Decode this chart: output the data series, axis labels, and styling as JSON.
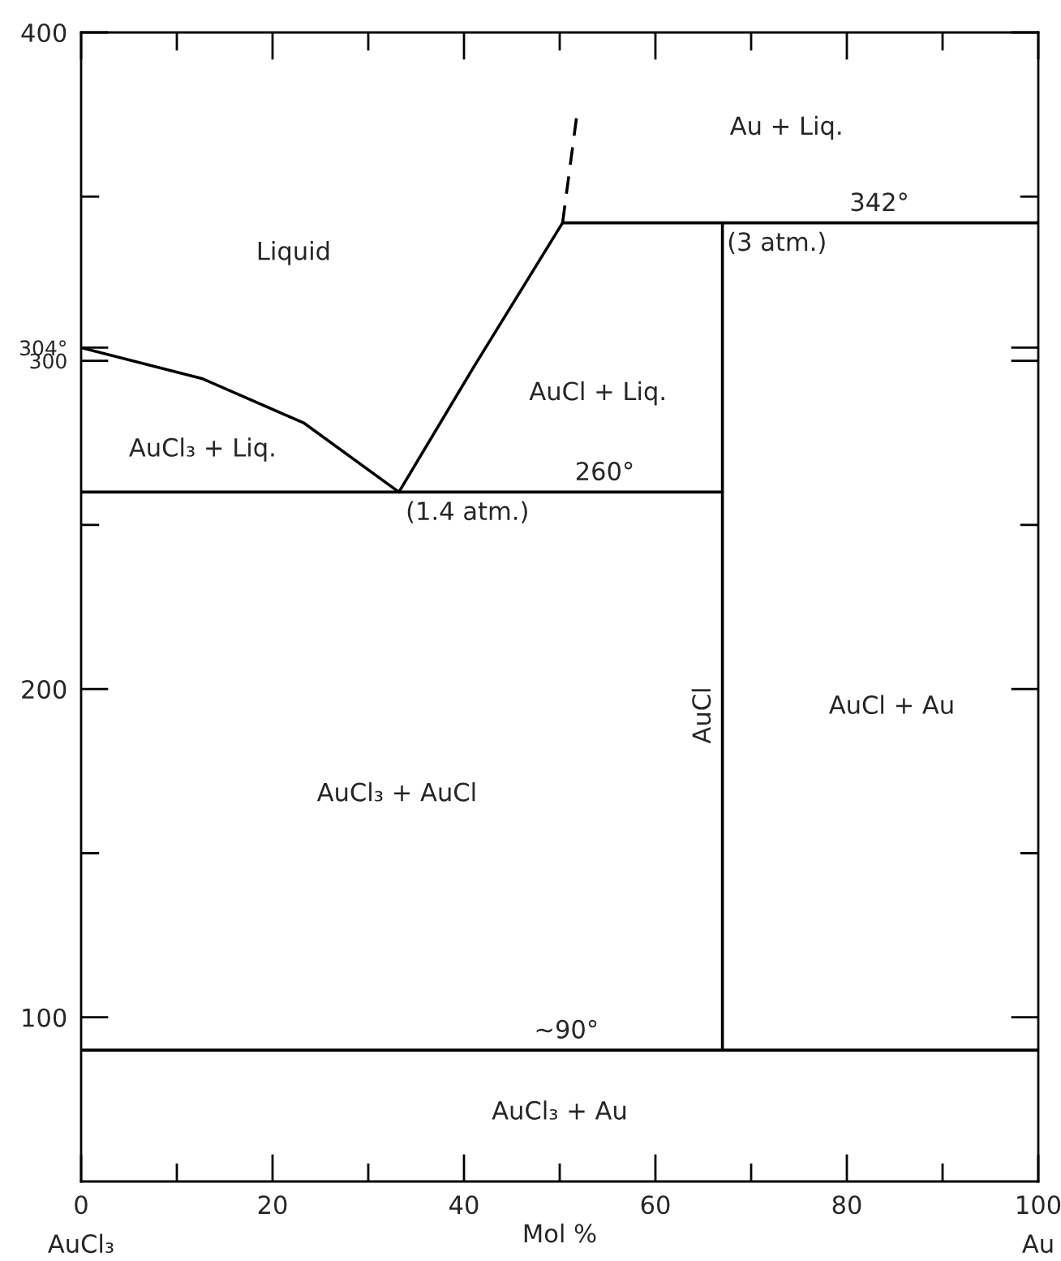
{
  "chart_data": {
    "type": "line",
    "xlabel": "Mol %",
    "xlim": [
      0,
      100
    ],
    "ylim": [
      50,
      400
    ],
    "xticks": [
      0,
      {
        "value": 10,
        "label": null
      },
      20,
      {
        "value": 30,
        "label": null
      },
      40,
      {
        "value": 50,
        "label": null
      },
      60,
      {
        "value": 70,
        "label": null
      },
      80,
      {
        "value": 90,
        "label": null
      },
      100
    ],
    "yticks": [
      100,
      {
        "value": 150,
        "label": null
      },
      200,
      {
        "value": 250,
        "label": null
      },
      300,
      {
        "value": 304,
        "label": "304°"
      },
      {
        "value": 350,
        "label": null
      },
      400
    ],
    "grid": false,
    "legend": false,
    "marker": "none",
    "series": [
      {
        "color": "#000000",
        "line_style": "solid",
        "x": [
          0,
          12.7,
          23.3,
          33.2
        ],
        "values": [
          304,
          294.5,
          281,
          260
        ]
      },
      {
        "color": "#000000",
        "line_style": "solid",
        "x": [
          33.2,
          41,
          50.3
        ],
        "values": [
          260,
          298,
          342
        ]
      },
      {
        "color": "#000000",
        "line_style": "dashed",
        "x": [
          50.3,
          51.8
        ],
        "values": [
          342,
          375
        ]
      },
      {
        "color": "#000000",
        "line_style": "solid",
        "x": [
          0,
          67
        ],
        "values": [
          260,
          260
        ]
      },
      {
        "color": "#000000",
        "line_style": "solid",
        "x": [
          50.3,
          100
        ],
        "values": [
          342,
          342
        ]
      },
      {
        "color": "#000000",
        "line_style": "solid",
        "x": [
          67,
          67
        ],
        "values": [
          90,
          342
        ]
      },
      {
        "color": "#000000",
        "line_style": "solid",
        "x": [
          0,
          100
        ],
        "values": [
          90,
          90
        ]
      }
    ],
    "annotations": [
      "Liquid",
      "Au + Liq.",
      {
        "text": "342°",
        "x": 83.4,
        "y": 342
      },
      {
        "text": "(3 atm.)",
        "x": 67,
        "y": 342
      },
      "AuCl + Liq.",
      "AuCl₃ + Liq.",
      {
        "text": "260°",
        "x": 54.7,
        "y": 260
      },
      {
        "text": "(1.4 atm.)",
        "x": 33.2,
        "y": 260
      },
      "AuCl + Au",
      "AuCl₃ + AuCl",
      {
        "text": "AuCl",
        "x": 67,
        "y": 192
      },
      {
        "text": "~90°",
        "x": 50.7,
        "y": 90
      },
      "AuCl₃ + Au",
      "AuCl₃",
      "Au"
    ]
  }
}
